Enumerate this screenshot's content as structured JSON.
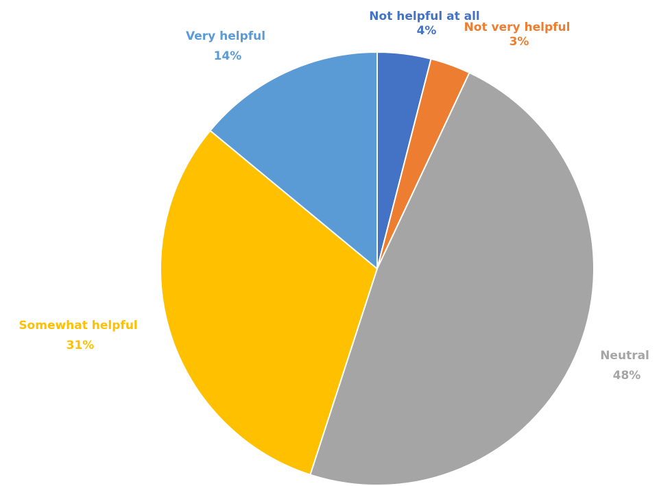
{
  "chart_data": {
    "type": "pie",
    "title": "",
    "slices": [
      {
        "label": "Not helpful at all",
        "value": 4,
        "value_label": "4%",
        "color": "#4472C4"
      },
      {
        "label": "Not very helpful",
        "value": 3,
        "value_label": "3%",
        "color": "#ED7D31"
      },
      {
        "label": "Neutral",
        "value": 48,
        "value_label": "48%",
        "color": "#A5A5A5"
      },
      {
        "label": "Somewhat helpful",
        "value": 31,
        "value_label": "31%",
        "color": "#FFC000"
      },
      {
        "label": "Very helpful",
        "value": 14,
        "value_label": "14%",
        "color": "#5B9BD5"
      }
    ],
    "start_angle": "12 o'clock",
    "direction": "clockwise",
    "legend": "none",
    "data_labels": "category name and percentage, colored like slice"
  }
}
